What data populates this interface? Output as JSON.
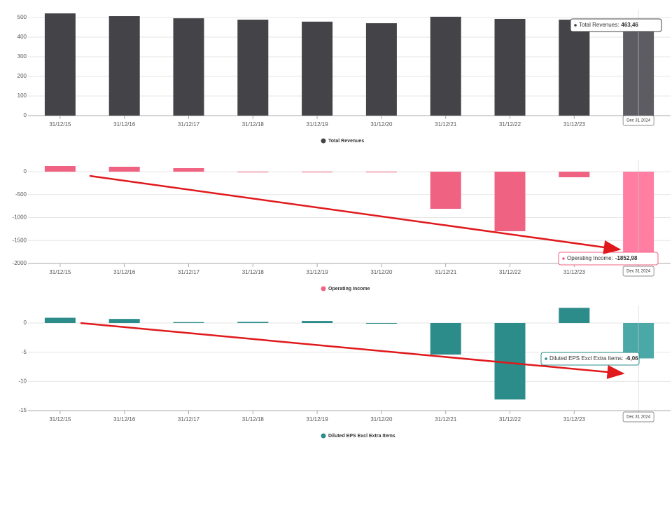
{
  "chart_data": [
    {
      "type": "bar",
      "categories": [
        "31/12/15",
        "31/12/16",
        "31/12/17",
        "31/12/18",
        "31/12/19",
        "31/12/20",
        "31/12/21",
        "31/12/22",
        "31/12/23",
        null
      ],
      "series": [
        {
          "name": "Total Revenues",
          "color": "#434348",
          "highlight_color": "#5d5c62",
          "values": [
            521,
            507,
            496,
            489,
            479,
            471,
            504,
            493,
            489,
            463.46
          ],
          "value_labels": [
            null,
            null,
            null,
            null,
            null,
            null,
            null,
            null,
            null,
            "463,46"
          ]
        }
      ],
      "ylim": [
        0,
        540
      ],
      "yticks": [
        0,
        100,
        200,
        300,
        400,
        500
      ],
      "grid": true,
      "tooltip_label": "Total Revenues:",
      "hover_label": "Dec 31 2024"
    },
    {
      "type": "bar",
      "categories": [
        "31/12/15",
        "31/12/16",
        "31/12/17",
        "31/12/18",
        "31/12/19",
        "31/12/20",
        "31/12/21",
        "31/12/22",
        "31/12/23",
        null
      ],
      "series": [
        {
          "name": "Operating Income",
          "color": "#f06282",
          "highlight_color": "#ff7ea2",
          "values": [
            122,
            107,
            76,
            0,
            0,
            -15,
            -809,
            -1298,
            -122,
            -1852.98
          ],
          "value_labels": [
            null,
            null,
            null,
            null,
            null,
            null,
            null,
            null,
            null,
            "-1852,98"
          ]
        }
      ],
      "ylim": [
        -2000,
        250
      ],
      "yticks": [
        -2000,
        -1500,
        -1000,
        -500,
        0
      ],
      "grid": true,
      "tooltip_label": "Operating Income:",
      "hover_label": "Dec 31 2024"
    },
    {
      "type": "bar",
      "categories": [
        "31/12/15",
        "31/12/16",
        "31/12/17",
        "31/12/18",
        "31/12/19",
        "31/12/20",
        "31/12/21",
        "31/12/22",
        "31/12/23",
        null
      ],
      "series": [
        {
          "name": "Diluted EPS Excl Extra Items",
          "color": "#2b8c8a",
          "highlight_color": "#4aa8a6",
          "values": [
            0.9,
            0.7,
            0.15,
            0.2,
            0.35,
            -0.05,
            -5.4,
            -13.1,
            2.6,
            -6.06
          ],
          "value_labels": [
            null,
            null,
            null,
            null,
            null,
            null,
            null,
            null,
            null,
            "-6,06"
          ]
        }
      ],
      "ylim": [
        -15,
        3
      ],
      "yticks": [
        -15,
        -10,
        -5,
        0
      ],
      "grid": true,
      "tooltip_label": "Diluted EPS Excl Extra Items:",
      "hover_label": "Dec 31 2024"
    }
  ]
}
